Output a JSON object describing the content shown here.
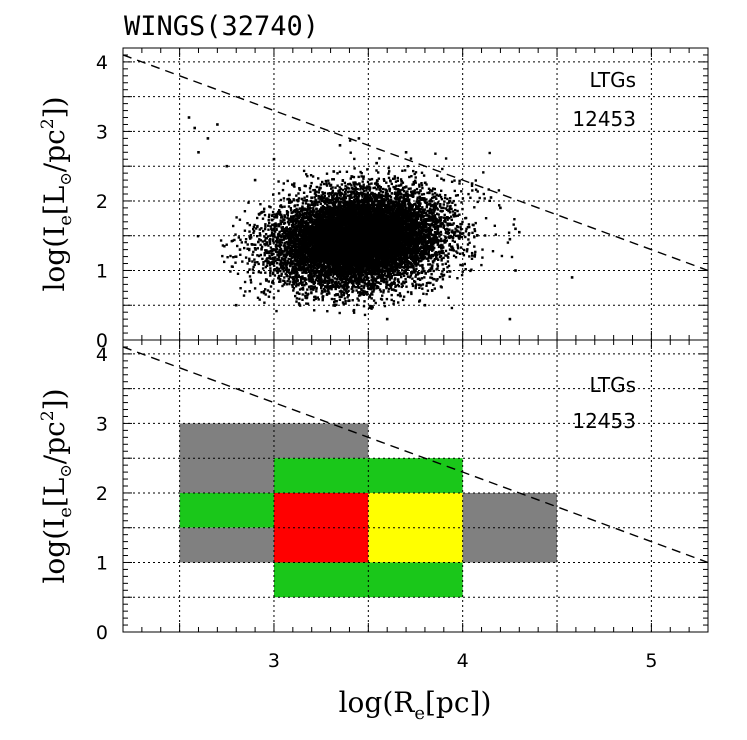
{
  "figure_title": "WINGS(32740)",
  "chart_data": [
    {
      "type": "scatter",
      "panel": "top",
      "xlabel": "log(R_e[pc])",
      "ylabel": "log(I_e[L_⊙/pc²])",
      "xlim": [
        2.2,
        5.3
      ],
      "ylim": [
        0,
        4.2
      ],
      "x_ticks": [
        3,
        4,
        5
      ],
      "y_ticks": [
        0,
        1,
        2,
        3,
        4
      ],
      "grid": true,
      "annotation_label": "LTGs",
      "annotation_count": "12453",
      "n_points": 12453,
      "dense_core": {
        "x_center": 3.45,
        "y_center": 1.45,
        "x_sigma": 0.22,
        "y_sigma": 0.33
      },
      "outliers": [
        [
          2.55,
          3.2
        ],
        [
          2.58,
          3.05
        ],
        [
          2.6,
          2.7
        ],
        [
          2.65,
          2.9
        ],
        [
          2.7,
          3.1
        ],
        [
          2.75,
          2.5
        ],
        [
          2.8,
          0.5
        ],
        [
          2.82,
          1.3
        ],
        [
          2.9,
          2.3
        ],
        [
          3.0,
          2.6
        ],
        [
          3.35,
          2.8
        ],
        [
          3.45,
          2.9
        ],
        [
          3.7,
          2.7
        ],
        [
          3.9,
          2.3
        ],
        [
          4.05,
          2.25
        ],
        [
          4.15,
          2.05
        ],
        [
          4.2,
          1.9
        ],
        [
          4.25,
          1.45
        ],
        [
          4.28,
          1.6
        ],
        [
          4.3,
          1.55
        ],
        [
          4.28,
          1.0
        ],
        [
          4.25,
          0.3
        ],
        [
          4.58,
          0.9
        ],
        [
          3.6,
          0.3
        ],
        [
          3.8,
          0.5
        ]
      ],
      "reference_line": {
        "style": "dashed",
        "points": [
          [
            2.2,
            4.1
          ],
          [
            5.3,
            1.0
          ]
        ]
      }
    },
    {
      "type": "heatmap",
      "panel": "bottom",
      "xlabel": "log(R_e[pc])",
      "ylabel": "log(I_e[L_⊙/pc²])",
      "xlim": [
        2.2,
        5.3
      ],
      "ylim": [
        0,
        4.2
      ],
      "x_ticks": [
        3,
        4,
        5
      ],
      "y_ticks": [
        0,
        1,
        2,
        3,
        4
      ],
      "grid": true,
      "annotation_label": "LTGs",
      "annotation_count": "12453",
      "colors": {
        "low": "#808080",
        "medium": "#1ac71a",
        "high": "#ff0000",
        "highest": "#ffff00"
      },
      "cells": [
        {
          "x0": 2.5,
          "x1": 3.0,
          "y0": 2.0,
          "y1": 3.0,
          "level": "low"
        },
        {
          "x0": 3.0,
          "x1": 3.5,
          "y0": 2.5,
          "y1": 3.0,
          "level": "low"
        },
        {
          "x0": 2.5,
          "x1": 3.0,
          "y0": 1.5,
          "y1": 2.0,
          "level": "medium"
        },
        {
          "x0": 2.5,
          "x1": 3.0,
          "y0": 1.0,
          "y1": 1.5,
          "level": "low"
        },
        {
          "x0": 3.0,
          "x1": 4.0,
          "y0": 2.0,
          "y1": 2.5,
          "level": "medium"
        },
        {
          "x0": 3.0,
          "x1": 3.5,
          "y0": 1.0,
          "y1": 2.0,
          "level": "high"
        },
        {
          "x0": 3.5,
          "x1": 4.0,
          "y0": 1.0,
          "y1": 2.0,
          "level": "highest"
        },
        {
          "x0": 4.0,
          "x1": 4.5,
          "y0": 1.0,
          "y1": 2.0,
          "level": "low"
        },
        {
          "x0": 3.0,
          "x1": 4.0,
          "y0": 0.5,
          "y1": 1.0,
          "level": "medium"
        }
      ],
      "reference_line": {
        "style": "dashed",
        "points": [
          [
            2.2,
            4.1
          ],
          [
            5.3,
            1.0
          ]
        ]
      }
    }
  ],
  "ylabel_parts": {
    "base": "log(I",
    "sub": "e",
    "mid1": "[L",
    "sun": "⊙",
    "mid2": "/pc",
    "sup": "2",
    "end": "])"
  },
  "xlabel_parts": {
    "base": "log(R",
    "sub": "e",
    "end": "[pc])"
  }
}
